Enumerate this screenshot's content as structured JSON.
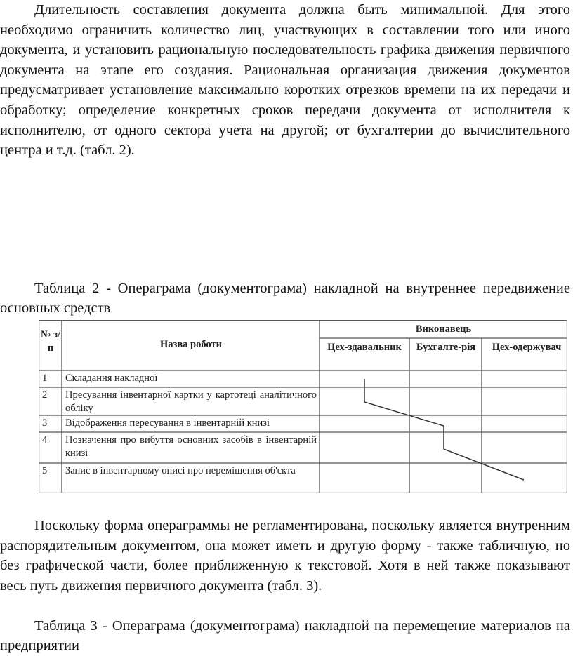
{
  "paragraph1": "Длительность составления документа должна быть минимальной. Для этого необходимо ограничить количество лиц, участвующих в составлении того или иного документа, и установить рациональную последовательность графика движения первичного документа на этапе его создания. Рациональная организация движения документов предусматривает установление максимально коротких отрезков времени на их передачи и обработку; определение конкретных сроков передачи документа от исполнителя к исполнителю, от одного сектора учета на другой; от бухгалтерии до вычислительного центра и т.д. (табл. 2).",
  "table2_caption": "Таблица 2 -  Операграма (документограма) накладной на внутреннее передвижение основных средств",
  "table2": {
    "header_num": "№ з/п",
    "header_name": "Назва роботи",
    "header_executor": "Виконавець",
    "executors": [
      "Цех-здавальник",
      "Бухгалте-рія",
      "Цех-одержувач"
    ],
    "rows": [
      {
        "num": "1",
        "name": "Складання накладної",
        "executor_index": 0
      },
      {
        "num": "2",
        "name": "Пресування інвентарної картки у картотеці аналітичного обліку",
        "executor_index": 0
      },
      {
        "num": "3",
        "name": "Відображення пересування в інвентарній книзі",
        "executor_index": 1
      },
      {
        "num": "4",
        "name": "Позначення про вибуття основних засобів в інвентарній книзі",
        "executor_index": 1
      },
      {
        "num": "5",
        "name": "Запис в інвентарному описі про переміщення об'єкта",
        "executor_index": 2
      }
    ]
  },
  "paragraph2": "Поскольку форма операграммы не регламентирована, поскольку является внутренним распорядительным документом, она может иметь и другую форму - также табличную, но без графической части, более приближенную к текстовой. Хотя в ней также показывают весь путь движения первичного документа (табл. 3).",
  "table3_caption": "Таблица 3 - Операграма (документограма) накладной на перемещение материалов на предприятии"
}
